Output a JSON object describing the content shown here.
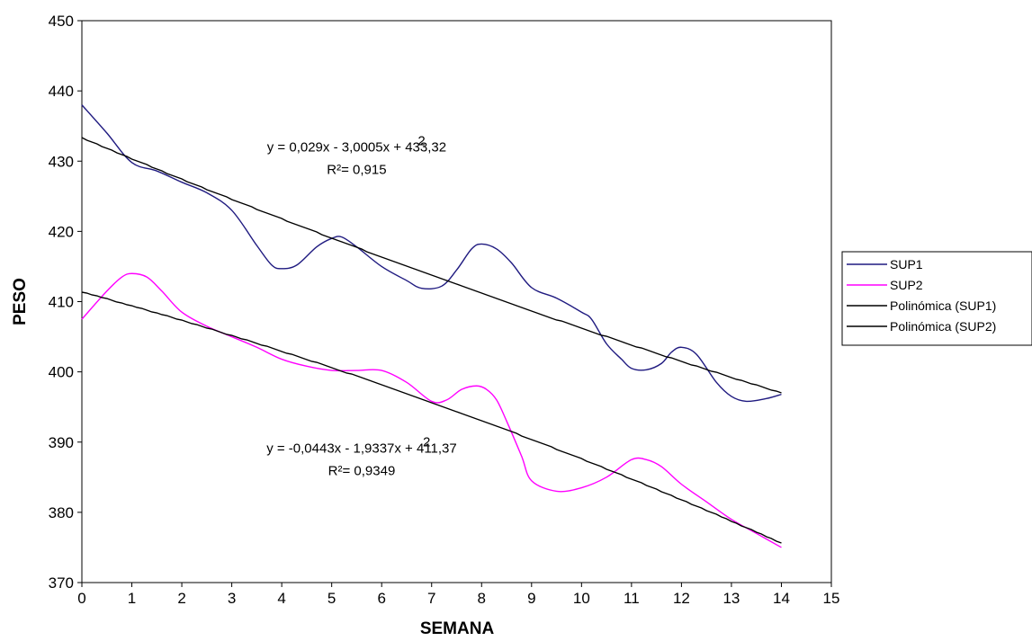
{
  "chart_data": {
    "type": "line",
    "xlabel": "SEMANA",
    "ylabel": "PESO",
    "xlim": [
      0,
      15
    ],
    "ylim": [
      370,
      450
    ],
    "x_ticks": [
      "0",
      "1",
      "2",
      "3",
      "4",
      "5",
      "6",
      "7",
      "8",
      "9",
      "10",
      "11",
      "12",
      "13",
      "14",
      "15"
    ],
    "y_ticks": [
      "370",
      "380",
      "390",
      "400",
      "410",
      "420",
      "430",
      "440",
      "450"
    ],
    "grid": false,
    "legend_position": "right",
    "series": [
      {
        "name": "SUP1",
        "color": "#1f1a80",
        "points": [
          [
            0,
            438
          ],
          [
            0.5,
            434
          ],
          [
            1,
            429.8
          ],
          [
            1.5,
            428.6
          ],
          [
            2,
            427
          ],
          [
            2.5,
            425.5
          ],
          [
            3,
            423
          ],
          [
            3.5,
            418
          ],
          [
            3.8,
            415.2
          ],
          [
            4,
            414.7
          ],
          [
            4.3,
            415.2
          ],
          [
            4.7,
            417.8
          ],
          [
            5,
            419
          ],
          [
            5.2,
            419.2
          ],
          [
            5.5,
            417.8
          ],
          [
            6,
            415
          ],
          [
            6.5,
            413
          ],
          [
            6.8,
            411.9
          ],
          [
            7.2,
            412.2
          ],
          [
            7.5,
            414.5
          ],
          [
            7.8,
            417.5
          ],
          [
            8,
            418.2
          ],
          [
            8.3,
            417.5
          ],
          [
            8.6,
            415.5
          ],
          [
            9,
            412
          ],
          [
            9.5,
            410.5
          ],
          [
            10,
            408.5
          ],
          [
            10.2,
            407.5
          ],
          [
            10.5,
            404
          ],
          [
            10.8,
            401.8
          ],
          [
            11,
            400.5
          ],
          [
            11.3,
            400.3
          ],
          [
            11.6,
            401.2
          ],
          [
            11.8,
            402.8
          ],
          [
            12,
            403.5
          ],
          [
            12.3,
            402.5
          ],
          [
            12.7,
            398.5
          ],
          [
            13,
            396.5
          ],
          [
            13.3,
            395.8
          ],
          [
            13.7,
            396.2
          ],
          [
            14,
            396.8
          ]
        ]
      },
      {
        "name": "SUP2",
        "color": "#ff00ff",
        "points": [
          [
            0,
            407.5
          ],
          [
            0.5,
            411.5
          ],
          [
            0.8,
            413.5
          ],
          [
            1,
            414
          ],
          [
            1.3,
            413.5
          ],
          [
            1.6,
            411.5
          ],
          [
            2,
            408.5
          ],
          [
            2.5,
            406.5
          ],
          [
            3,
            405
          ],
          [
            3.5,
            403.5
          ],
          [
            4,
            401.8
          ],
          [
            4.5,
            400.8
          ],
          [
            5,
            400.2
          ],
          [
            5.5,
            400.2
          ],
          [
            6,
            400.2
          ],
          [
            6.5,
            398.5
          ],
          [
            7,
            395.8
          ],
          [
            7.3,
            396
          ],
          [
            7.6,
            397.5
          ],
          [
            7.9,
            398
          ],
          [
            8.1,
            397.5
          ],
          [
            8.3,
            396
          ],
          [
            8.5,
            393
          ],
          [
            8.8,
            388
          ],
          [
            9,
            384.5
          ],
          [
            9.5,
            383
          ],
          [
            10,
            383.5
          ],
          [
            10.5,
            385
          ],
          [
            11,
            387.5
          ],
          [
            11.3,
            387.5
          ],
          [
            11.6,
            386.5
          ],
          [
            12,
            384
          ],
          [
            12.5,
            381.5
          ],
          [
            13,
            379
          ],
          [
            13.5,
            377
          ],
          [
            14,
            375
          ]
        ]
      },
      {
        "name": "Polinómica (SUP1)",
        "color": "#000000",
        "trend": true,
        "coefficients": [
          0.029,
          -3.0005,
          433.32
        ],
        "x_range": [
          0,
          14
        ]
      },
      {
        "name": "Polinómica (SUP2)",
        "color": "#000000",
        "trend": true,
        "coefficients": [
          -0.0443,
          -1.9337,
          411.37
        ],
        "x_range": [
          0,
          14
        ]
      }
    ],
    "annotations": [
      {
        "eq": "y = 0,029x - 3,0005x + 433,32",
        "sup": "2",
        "r2": "R²= 0,915",
        "x": 5.5,
        "y": 431.4,
        "r2_y": 428.2
      },
      {
        "eq": "y = -0,0443x - 1,9337x + 411,37",
        "sup": "2",
        "r2": "R²= 0,9349",
        "x": 5.6,
        "y": 388.5,
        "r2_y": 385.3
      }
    ]
  }
}
